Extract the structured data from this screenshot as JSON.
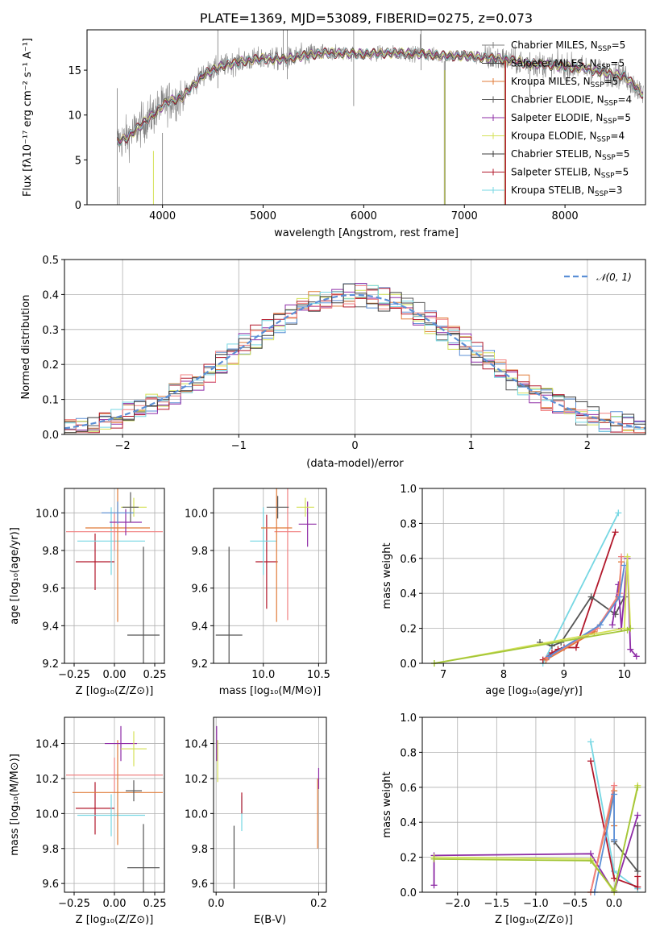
{
  "colors": [
    "#6f6f6f",
    "#4a4a4a",
    "#e07b39",
    "#5a5a5a",
    "#8e2ca6",
    "#d4e157",
    "#3c3c3c",
    "#b2182b",
    "#76d7e3",
    "#f08080",
    "#e6e600",
    "#5b8fd6"
  ],
  "chart_data": [
    {
      "id": "spectrum",
      "type": "line",
      "title": "PLATE=1369, MJD=53089, FIBERID=0275, z=0.073",
      "xlabel": "wavelength [Angstrom, rest frame]",
      "ylabel": "Flux [fλ10⁻¹⁷ erg cm⁻² s⁻¹ A⁻¹]",
      "xlim": [
        3250,
        8800
      ],
      "ylim": [
        0,
        19.5
      ],
      "xticks": [
        4000,
        5000,
        6000,
        7000,
        8000
      ],
      "yticks": [
        0,
        5,
        10,
        15
      ],
      "grid": false,
      "legend_position": "top-right",
      "series": [
        {
          "name": "Chabrier MILES, N_SSP=5",
          "color": "#7f7f7f"
        },
        {
          "name": "Salpeter MILES, N_SSP=5",
          "color": "#404040"
        },
        {
          "name": "Kroupa MILES, N_SSP=5",
          "color": "#e07b39"
        },
        {
          "name": "Chabrier ELODIE, N_SSP=4",
          "color": "#5a5a5a"
        },
        {
          "name": "Salpeter ELODIE, N_SSP=5",
          "color": "#8e2ca6"
        },
        {
          "name": "Kroupa ELODIE, N_SSP=4",
          "color": "#d4e157"
        },
        {
          "name": "Chabrier STELIB, N_SSP=5",
          "color": "#3c3c3c"
        },
        {
          "name": "Salpeter STELIB, N_SSP=5",
          "color": "#b2182b"
        },
        {
          "name": "Kroupa STELIB, N_SSP=3",
          "color": "#76d7e3"
        }
      ],
      "continuum": {
        "wavelength": [
          3550,
          3650,
          3750,
          3850,
          3950,
          4050,
          4200,
          4400,
          4600,
          4800,
          5000,
          5200,
          5400,
          5600,
          5800,
          6000,
          6200,
          6400,
          6600,
          6800,
          7000,
          7200,
          7400,
          7600,
          7800,
          8000,
          8200,
          8400,
          8600,
          8800
        ],
        "flux": [
          7.0,
          7.5,
          8.5,
          9.5,
          10.5,
          11.5,
          12.0,
          14.5,
          15.5,
          16.0,
          16.3,
          16.2,
          16.6,
          16.9,
          16.9,
          16.8,
          16.9,
          16.9,
          16.8,
          16.6,
          16.6,
          16.4,
          16.2,
          15.8,
          15.6,
          15.4,
          15.2,
          14.7,
          14.3,
          12.0
        ]
      }
    },
    {
      "id": "residuals",
      "type": "histogram",
      "xlabel": "(data-model)/error",
      "ylabel": "Normed distribution",
      "xlim": [
        -2.5,
        2.5
      ],
      "ylim": [
        0,
        0.5
      ],
      "xticks": [
        -2,
        -1,
        0,
        1,
        2
      ],
      "xtick_labels": [
        "−2",
        "−1",
        "0",
        "1",
        "2"
      ],
      "yticks": [
        0.0,
        0.1,
        0.2,
        0.3,
        0.4,
        0.5
      ],
      "ytick_labels": [
        "0.0",
        "0.1",
        "0.2",
        "0.3",
        "0.4",
        "0.5"
      ],
      "grid": true,
      "legend": {
        "label": "𝒩(0, 1)",
        "color": "#5b8fd6",
        "position": "top-right"
      },
      "bin_width": 0.1
    },
    {
      "id": "age-vs-Z",
      "type": "scatter",
      "xlabel": "Z [log₁₀(Z/Z⊙)]",
      "ylabel": "age [log₁₀(age/yr)]",
      "xlim": [
        -0.31,
        0.31
      ],
      "ylim": [
        9.2,
        10.13
      ],
      "xticks": [
        -0.25,
        0.0,
        0.25
      ],
      "xtick_labels": [
        "−0.25",
        "0.00",
        "0.25"
      ],
      "yticks": [
        9.2,
        9.4,
        9.6,
        9.8,
        10.0
      ],
      "ytick_labels": [
        "9.2",
        "9.4",
        "9.6",
        "9.8",
        "10.0"
      ],
      "grid": true,
      "points": [
        {
          "x": 0.18,
          "y": 9.35,
          "xerr": 0.1,
          "yerr": 0.47,
          "c": "#555555"
        },
        {
          "x": -0.12,
          "y": 9.74,
          "xerr": 0.12,
          "yerr": 0.15,
          "c": "#b2182b"
        },
        {
          "x": -0.02,
          "y": 9.85,
          "xerr": 0.21,
          "yerr": 0.18,
          "c": "#76d7e3"
        },
        {
          "x": 0.0,
          "y": 9.9,
          "xerr": 0.3,
          "yerr": 0.1,
          "c": "#f08080"
        },
        {
          "x": 0.02,
          "y": 9.92,
          "xerr": 0.2,
          "yerr": 0.5,
          "c": "#e07b39"
        },
        {
          "x": 0.07,
          "y": 9.95,
          "xerr": 0.1,
          "yerr": 0.07,
          "c": "#8e2ca6"
        },
        {
          "x": 0.12,
          "y": 10.03,
          "xerr": 0.08,
          "yerr": 0.05,
          "c": "#d4e157"
        },
        {
          "x": 0.1,
          "y": 10.03,
          "xerr": 0.05,
          "yerr": 0.08,
          "c": "#5a5a5a"
        },
        {
          "x": 0.02,
          "y": 10.0,
          "xerr": 0.1,
          "yerr": 0.06,
          "c": "#5b8fd6"
        }
      ]
    },
    {
      "id": "age-vs-mass",
      "type": "scatter",
      "xlabel": "mass [log₁₀(M/M⊙)]",
      "xlim": [
        9.55,
        10.57
      ],
      "ylim": [
        9.2,
        10.13
      ],
      "xticks": [
        10.0,
        10.5
      ],
      "xtick_labels": [
        "10.0",
        "10.5"
      ],
      "yticks": [
        9.2,
        9.4,
        9.6,
        9.8,
        10.0
      ],
      "ytick_labels": [
        "9.2",
        "9.4",
        "9.6",
        "9.8",
        "10.0"
      ],
      "grid": true,
      "points": [
        {
          "x": 9.69,
          "y": 9.35,
          "xerr": 0.12,
          "yerr": 0.47,
          "c": "#555555"
        },
        {
          "x": 10.03,
          "y": 9.74,
          "xerr": 0.1,
          "yerr": 0.25,
          "c": "#b2182b"
        },
        {
          "x": 10.0,
          "y": 9.85,
          "xerr": 0.12,
          "yerr": 0.18,
          "c": "#76d7e3"
        },
        {
          "x": 10.22,
          "y": 9.9,
          "xerr": 0.12,
          "yerr": 0.47,
          "c": "#f08080"
        },
        {
          "x": 10.12,
          "y": 9.92,
          "xerr": 0.14,
          "yerr": 0.5,
          "c": "#e07b39"
        },
        {
          "x": 10.4,
          "y": 9.94,
          "xerr": 0.08,
          "yerr": 0.12,
          "c": "#8e2ca6"
        },
        {
          "x": 10.38,
          "y": 10.03,
          "xerr": 0.08,
          "yerr": 0.05,
          "c": "#d4e157"
        },
        {
          "x": 10.13,
          "y": 10.03,
          "xerr": 0.1,
          "yerr": 0.06,
          "c": "#5a5a5a"
        }
      ]
    },
    {
      "id": "weight-vs-age",
      "type": "line",
      "xlabel": "age [log₁₀(age/yr)]",
      "ylabel": "mass weight",
      "xlim": [
        6.65,
        10.35
      ],
      "ylim": [
        0,
        1
      ],
      "xticks": [
        7,
        8,
        9,
        10
      ],
      "xtick_labels": [
        "7",
        "8",
        "9",
        "10"
      ],
      "yticks": [
        0,
        0.2,
        0.4,
        0.6,
        0.8,
        1.0
      ],
      "ytick_labels": [
        "0.0",
        "0.2",
        "0.4",
        "0.6",
        "0.8",
        "1.0"
      ],
      "grid": true,
      "series": [
        {
          "c": "#76d7e3",
          "x": [
            8.65,
            9.9
          ],
          "y": [
            0.0,
            0.86
          ]
        },
        {
          "c": "#b2182b",
          "x": [
            8.65,
            8.8,
            8.9,
            9.0,
            9.2,
            9.85
          ],
          "y": [
            0.02,
            0.06,
            0.08,
            0.09,
            0.09,
            0.75
          ]
        },
        {
          "c": "#555555",
          "x": [
            8.6,
            8.8,
            8.95,
            9.45,
            9.85,
            10.0
          ],
          "y": [
            0.12,
            0.1,
            0.12,
            0.38,
            0.28,
            0.38
          ]
        },
        {
          "c": "#8e2ca6",
          "x": [
            9.8,
            9.9,
            9.95,
            10.05,
            10.1,
            10.2
          ],
          "y": [
            0.22,
            0.45,
            0.2,
            0.6,
            0.08,
            0.04
          ]
        },
        {
          "c": "#e07b39",
          "x": [
            8.7,
            9.5,
            9.9,
            9.95
          ],
          "y": [
            0.02,
            0.18,
            0.38,
            0.58
          ]
        },
        {
          "c": "#f08080",
          "x": [
            8.72,
            9.55,
            9.92,
            9.95
          ],
          "y": [
            0.03,
            0.2,
            0.4,
            0.61
          ]
        },
        {
          "c": "#5b8fd6",
          "x": [
            8.75,
            9.6,
            9.92,
            10.0
          ],
          "y": [
            0.04,
            0.22,
            0.38,
            0.56
          ]
        },
        {
          "c": "#d4e157",
          "x": [
            6.85,
            10.0,
            10.05,
            10.1
          ],
          "y": [
            0.0,
            0.2,
            0.61,
            0.2
          ]
        },
        {
          "c": "#a4c639",
          "x": [
            6.85,
            10.05,
            10.1
          ],
          "y": [
            0.0,
            0.19,
            0.2
          ]
        }
      ]
    },
    {
      "id": "mass-vs-Z",
      "type": "scatter",
      "xlabel": "Z [log₁₀(Z/Z⊙)]",
      "ylabel": "mass [log₁₀(M/M⊙)]",
      "xlim": [
        -0.31,
        0.31
      ],
      "ylim": [
        9.55,
        10.55
      ],
      "xticks": [
        -0.25,
        0.0,
        0.25
      ],
      "xtick_labels": [
        "−0.25",
        "0.00",
        "0.25"
      ],
      "yticks": [
        9.6,
        9.8,
        10.0,
        10.2,
        10.4
      ],
      "ytick_labels": [
        "9.6",
        "9.8",
        "10.0",
        "10.2",
        "10.4"
      ],
      "grid": true,
      "points": [
        {
          "x": 0.18,
          "y": 9.69,
          "xerr": 0.1,
          "yerr": 0.25,
          "c": "#555555"
        },
        {
          "x": -0.12,
          "y": 10.03,
          "xerr": 0.12,
          "yerr": 0.15,
          "c": "#b2182b"
        },
        {
          "x": -0.02,
          "y": 9.99,
          "xerr": 0.21,
          "yerr": 0.12,
          "c": "#76d7e3"
        },
        {
          "x": 0.0,
          "y": 10.22,
          "xerr": 0.3,
          "yerr": 0.1,
          "c": "#f08080"
        },
        {
          "x": 0.02,
          "y": 10.12,
          "xerr": 0.28,
          "yerr": 0.3,
          "c": "#e07b39"
        },
        {
          "x": 0.04,
          "y": 10.4,
          "xerr": 0.1,
          "yerr": 0.1,
          "c": "#8e2ca6"
        },
        {
          "x": 0.12,
          "y": 10.37,
          "xerr": 0.08,
          "yerr": 0.1,
          "c": "#d4e157"
        },
        {
          "x": 0.12,
          "y": 10.13,
          "xerr": 0.05,
          "yerr": 0.06,
          "c": "#5a5a5a"
        }
      ]
    },
    {
      "id": "mass-vs-ebv",
      "type": "scatter",
      "xlabel": "E(B-V)",
      "xlim": [
        -0.005,
        0.215
      ],
      "ylim": [
        9.55,
        10.55
      ],
      "xticks": [
        0.0,
        0.2
      ],
      "xtick_labels": [
        "0.0",
        "0.2"
      ],
      "yticks": [
        9.6,
        9.8,
        10.0,
        10.2,
        10.4
      ],
      "ytick_labels": [
        "9.6",
        "9.8",
        "10.0",
        "10.2",
        "10.4"
      ],
      "grid": true,
      "points": [
        {
          "x": 0.035,
          "y": 9.75,
          "xerr": 0,
          "yerr": 0.18,
          "c": "#555555"
        },
        {
          "x": 0.05,
          "y": 10.0,
          "xerr": 0,
          "yerr": 0.1,
          "c": "#76d7e3"
        },
        {
          "x": 0.05,
          "y": 10.06,
          "xerr": 0,
          "yerr": 0.06,
          "c": "#b2182b"
        },
        {
          "x": 0.001,
          "y": 10.4,
          "xerr": 0,
          "yerr": 0.1,
          "c": "#8e2ca6"
        },
        {
          "x": 0.003,
          "y": 10.3,
          "xerr": 0,
          "yerr": 0.12,
          "c": "#d4e157"
        },
        {
          "x": 0.198,
          "y": 10.0,
          "xerr": 0,
          "yerr": 0.2,
          "c": "#e07b39"
        },
        {
          "x": 0.2,
          "y": 10.2,
          "xerr": 0,
          "yerr": 0.06,
          "c": "#8e2ca6"
        }
      ]
    },
    {
      "id": "weight-vs-Z",
      "type": "line",
      "xlabel": "Z [log₁₀(Z/Z⊙)]",
      "ylabel": "mass weight",
      "xlim": [
        -2.45,
        0.4
      ],
      "ylim": [
        0,
        1
      ],
      "xticks": [
        -2.0,
        -1.5,
        -1.0,
        -0.5,
        0.0
      ],
      "xtick_labels": [
        "−2.0",
        "−1.5",
        "−1.0",
        "−0.5",
        "0.0"
      ],
      "yticks": [
        0,
        0.2,
        0.4,
        0.6,
        0.8,
        1.0
      ],
      "ytick_labels": [
        "0.0",
        "0.2",
        "0.4",
        "0.6",
        "0.8",
        "1.0"
      ],
      "grid": true,
      "series": [
        {
          "c": "#76d7e3",
          "x": [
            -0.3,
            0.0,
            0.3
          ],
          "y": [
            0.86,
            0.12,
            0.02
          ]
        },
        {
          "c": "#b2182b",
          "x": [
            -0.3,
            0.0,
            0.3,
            0.3
          ],
          "y": [
            0.75,
            0.08,
            0.03,
            0.09
          ]
        },
        {
          "c": "#555555",
          "x": [
            0.0,
            0.3,
            0.3
          ],
          "y": [
            0.29,
            0.12,
            0.38
          ]
        },
        {
          "c": "#8e2ca6",
          "x": [
            -2.3,
            -2.3,
            -0.3,
            0.0,
            0.3
          ],
          "y": [
            0.04,
            0.21,
            0.22,
            0.0,
            0.44
          ]
        },
        {
          "c": "#e07b39",
          "x": [
            -0.3,
            0.0,
            0.0
          ],
          "y": [
            0.0,
            0.58,
            0.38
          ]
        },
        {
          "c": "#f08080",
          "x": [
            -0.3,
            0.0
          ],
          "y": [
            0.0,
            0.61
          ]
        },
        {
          "c": "#5b8fd6",
          "x": [
            -0.25,
            0.0,
            0.0
          ],
          "y": [
            0.0,
            0.56,
            0.3
          ]
        },
        {
          "c": "#d4e157",
          "x": [
            -2.3,
            -0.3,
            0.0,
            0.3
          ],
          "y": [
            0.2,
            0.19,
            0.0,
            0.61
          ]
        },
        {
          "c": "#a4c639",
          "x": [
            -2.3,
            -0.3,
            0.0,
            0.3
          ],
          "y": [
            0.19,
            0.18,
            0.01,
            0.6
          ]
        }
      ]
    }
  ]
}
